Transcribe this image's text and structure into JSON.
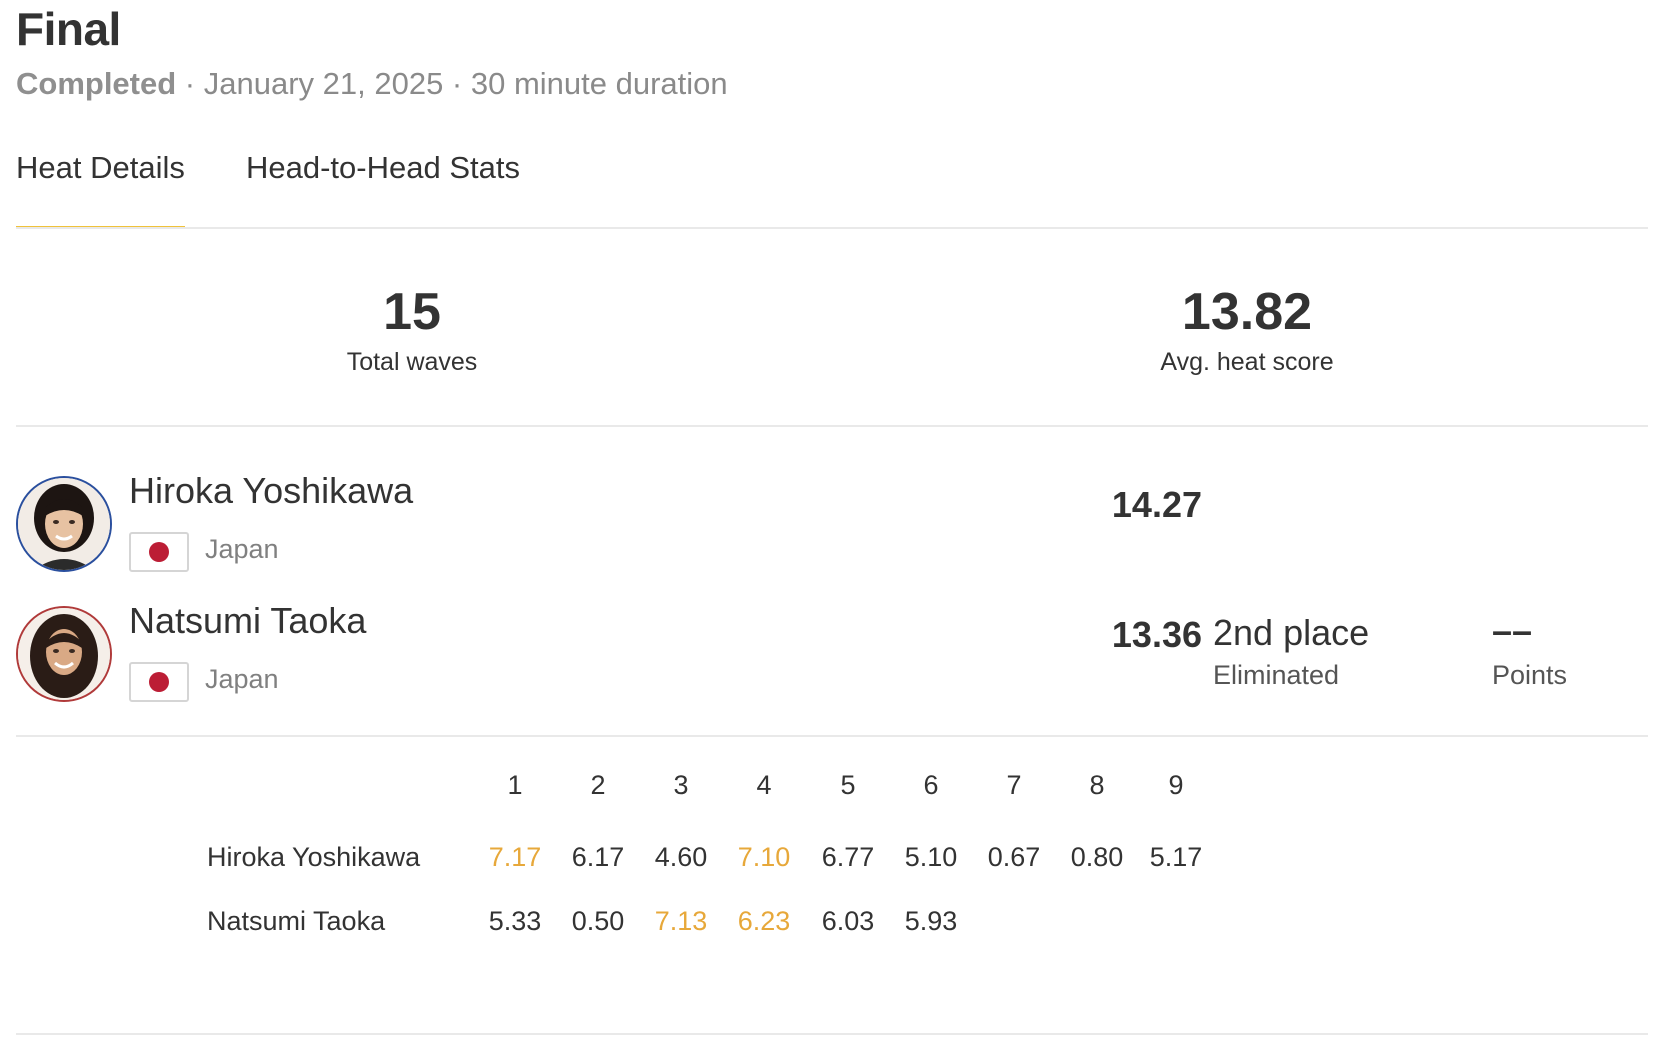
{
  "header": {
    "title": "Final",
    "status": "Completed",
    "meta": " · January 21, 2025 · 30 minute duration"
  },
  "tabs": [
    {
      "label": "Heat Details",
      "active": true
    },
    {
      "label": "Head-to-Head Stats",
      "active": false
    }
  ],
  "stats": {
    "total_waves": {
      "value": "15",
      "label": "Total waves"
    },
    "avg_heat_score": {
      "value": "13.82",
      "label": "Avg. heat score"
    }
  },
  "athletes": [
    {
      "name": "Hiroka Yoshikawa",
      "country": "Japan",
      "score": "14.27",
      "avatar_icon": "athlete-avatar-icon"
    },
    {
      "name": "Natsumi Taoka",
      "country": "Japan",
      "score": "13.36",
      "place": "2nd place",
      "result": "Eliminated",
      "points_value": "––",
      "points_label": "Points",
      "avatar_icon": "athlete-avatar-icon"
    }
  ],
  "colors": {
    "tab_underline": "#f0c23a",
    "highlight_score": "#e7a83a",
    "japan_red": "#bc1d35"
  },
  "wave_scores": {
    "wave_numbers": [
      "1",
      "2",
      "3",
      "4",
      "5",
      "6",
      "7",
      "8",
      "9"
    ],
    "rows": [
      {
        "name": "Hiroka Yoshikawa",
        "scores": [
          "7.17",
          "6.17",
          "4.60",
          "7.10",
          "6.77",
          "5.10",
          "0.67",
          "0.80",
          "5.17"
        ],
        "highlighted": [
          true,
          false,
          false,
          true,
          false,
          false,
          false,
          false,
          false
        ]
      },
      {
        "name": "Natsumi Taoka",
        "scores": [
          "5.33",
          "0.50",
          "7.13",
          "6.23",
          "6.03",
          "5.93"
        ],
        "highlighted": [
          false,
          false,
          true,
          true,
          false,
          false
        ]
      }
    ]
  }
}
